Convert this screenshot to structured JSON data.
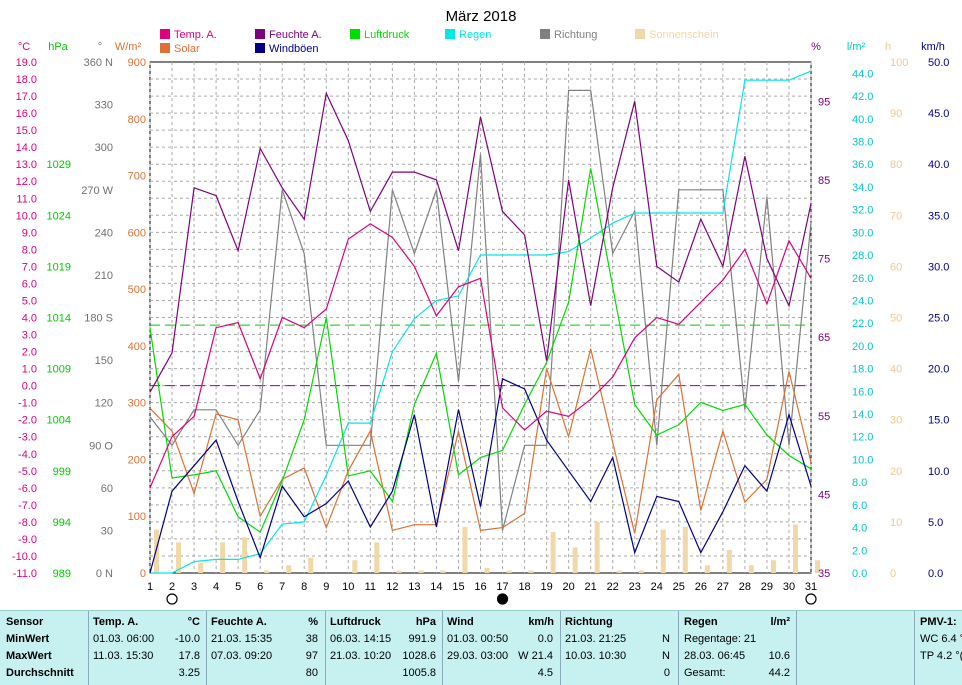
{
  "chart_data": {
    "type": "line",
    "title": "März 2018",
    "x": [
      1,
      2,
      3,
      4,
      5,
      6,
      7,
      8,
      9,
      10,
      11,
      12,
      13,
      14,
      15,
      16,
      17,
      18,
      19,
      20,
      21,
      22,
      23,
      24,
      25,
      26,
      27,
      28,
      29,
      30,
      31
    ],
    "moon_phase_days": [
      2,
      17,
      31
    ],
    "series": [
      {
        "name": "Temp. A.",
        "color": "#e0007e",
        "unit": "°C",
        "ylim": [
          -11,
          19
        ],
        "values": [
          -6.0,
          -3.0,
          -1.8,
          3.4,
          3.7,
          0.4,
          4.0,
          3.4,
          4.5,
          8.6,
          9.5,
          8.7,
          7.0,
          4.1,
          5.8,
          6.3,
          -1.3,
          -2.6,
          -1.5,
          -1.8,
          -0.8,
          0.5,
          2.8,
          4.0,
          3.6,
          4.9,
          6.2,
          8.0,
          4.8,
          8.5,
          6.3
        ]
      },
      {
        "name": "Feuchte A.",
        "color": "#800080",
        "unit": "%",
        "ylim": [
          35,
          100
        ],
        "values": [
          58,
          63,
          84,
          83,
          76,
          89,
          84,
          80,
          96,
          90,
          81,
          86,
          86,
          85,
          76,
          93,
          81,
          78,
          62,
          85,
          69,
          84,
          95,
          74,
          72,
          80,
          74,
          88,
          75,
          69,
          82
        ]
      },
      {
        "name": "Luftdruck",
        "color": "#00dd00",
        "unit": "hPa",
        "ylim": [
          989,
          1039
        ],
        "values": [
          1013,
          998.3,
          998.6,
          999,
          994.5,
          993,
          998,
          1004,
          1014,
          998.5,
          999,
          996,
          1005.5,
          1010.5,
          998.6,
          1000.3,
          1001,
          1005.5,
          1009.6,
          1015.5,
          1028.6,
          1017,
          1005.5,
          1002.5,
          1003.5,
          1005.7,
          1004.9,
          1005.5,
          1002.5,
          1000.5,
          999.2
        ]
      },
      {
        "name": "Regen",
        "color": "#00e8e8",
        "unit": "l/m²",
        "ylim": [
          0,
          45
        ],
        "cumulative": true,
        "values": [
          0,
          0,
          1.0,
          1.2,
          1.2,
          1.7,
          4.3,
          4.5,
          8.6,
          13.2,
          13.2,
          19.5,
          22.4,
          24.0,
          24.4,
          28.0,
          28.0,
          28.0,
          28.0,
          28.3,
          29.5,
          30.8,
          31.7,
          31.7,
          31.7,
          31.7,
          31.7,
          43.4,
          43.4,
          43.4,
          44.2
        ]
      },
      {
        "name": "Richtung",
        "color": "#808080",
        "unit": "°",
        "ylim": [
          0,
          360
        ],
        "values": [
          110,
          90,
          115,
          115,
          90,
          115,
          270,
          225,
          90,
          90,
          90,
          270,
          225,
          270,
          135,
          295,
          30,
          90,
          90,
          340,
          340,
          225,
          255,
          90,
          270,
          270,
          270,
          115,
          265,
          90,
          247
        ]
      },
      {
        "name": "Solar",
        "color": "#e07030",
        "unit": "W/m²",
        "ylim": [
          0,
          900
        ],
        "values": [
          290,
          250,
          140,
          280,
          270,
          100,
          165,
          185,
          80,
          180,
          250,
          75,
          85,
          85,
          250,
          75,
          80,
          105,
          360,
          240,
          395,
          230,
          70,
          305,
          350,
          110,
          250,
          125,
          165,
          355,
          195
        ]
      },
      {
        "name": "Windböen",
        "color": "#00008b",
        "unit": "km/h",
        "ylim": [
          0,
          50
        ],
        "values": [
          0,
          8.0,
          10.5,
          13.0,
          7.0,
          1.5,
          8.5,
          5.5,
          6.8,
          9.0,
          4.5,
          8.0,
          15.5,
          4.5,
          16.0,
          6.5,
          19.0,
          18.0,
          13.0,
          10.0,
          7.0,
          11.3,
          2.0,
          7.5,
          7.0,
          2.0,
          6.0,
          10.5,
          8.0,
          15.5,
          8.5
        ]
      },
      {
        "name": "Sonnenschein",
        "color": "#f0d8a8",
        "unit": "h",
        "ylim": [
          0,
          100
        ],
        "values": [
          8.5,
          6,
          2,
          6,
          7,
          0.5,
          1.5,
          3,
          0,
          2.5,
          6,
          0.5,
          0.5,
          0.5,
          9,
          1,
          0.5,
          0.5,
          8,
          5,
          10,
          0.5,
          0.5,
          8.5,
          9,
          1.5,
          4.5,
          1.5,
          2.5,
          9.5,
          2.5
        ]
      }
    ],
    "reference_lines": [
      {
        "axis": "hPa",
        "value": 1013.25,
        "color": "#00cc00",
        "style": "dashed"
      },
      {
        "axis": "°C",
        "value": 0,
        "color": "#9a00c8",
        "style": "dashed"
      }
    ],
    "axes": {
      "temp": {
        "label": "°C",
        "color": "#e0007e",
        "ticks": [
          "19.0",
          "18.0",
          "17.0",
          "16.0",
          "15.0",
          "14.0",
          "13.0",
          "12.0",
          "11.0",
          "10.0",
          "9.0",
          "8.0",
          "7.0",
          "6.0",
          "5.0",
          "4.0",
          "3.0",
          "2.0",
          "1.0",
          "0.0",
          "-1.0",
          "-2.0",
          "-3.0",
          "-4.0",
          "-5.0",
          "-6.0",
          "-7.0",
          "-8.0",
          "-9.0",
          "-10.0",
          "-11.0"
        ]
      },
      "pressure": {
        "label": "hPa",
        "color": "#00cc00",
        "ticks": [
          "1029",
          "1024",
          "1019",
          "1014",
          "1009",
          "1004",
          "999",
          "994",
          "989"
        ]
      },
      "direction": {
        "label": "°",
        "color": "#707070",
        "ticks": [
          "360 N",
          "330",
          "300",
          "270 W",
          "240",
          "210",
          "180 S",
          "150",
          "120",
          "90 O",
          "60",
          "30",
          "0 N"
        ]
      },
      "solar": {
        "label": "W/m²",
        "color": "#e07030",
        "ticks": [
          "900",
          "800",
          "700",
          "600",
          "500",
          "400",
          "300",
          "200",
          "100",
          "0"
        ]
      },
      "humidity": {
        "label": "%",
        "color": "#800080",
        "ticks": [
          "95",
          "85",
          "75",
          "65",
          "55",
          "45",
          "35"
        ]
      },
      "rain": {
        "label": "l/m²",
        "color": "#00c8c8",
        "ticks": [
          "44.0",
          "42.0",
          "40.0",
          "38.0",
          "36.0",
          "34.0",
          "32.0",
          "30.0",
          "28.0",
          "26.0",
          "24.0",
          "22.0",
          "20.0",
          "18.0",
          "16.0",
          "14.0",
          "12.0",
          "10.0",
          "8.0",
          "6.0",
          "4.0",
          "2.0",
          "0.0"
        ]
      },
      "sun": {
        "label": "h",
        "color": "#f0c890",
        "ticks": [
          "100",
          "90",
          "80",
          "70",
          "60",
          "50",
          "40",
          "30",
          "20",
          "10",
          "0"
        ]
      },
      "wind": {
        "label": "km/h",
        "color": "#00008b",
        "ticks": [
          "50.0",
          "45.0",
          "40.0",
          "35.0",
          "30.0",
          "25.0",
          "20.0",
          "15.0",
          "10.0",
          "5.0",
          "0.0"
        ]
      }
    }
  },
  "summary_table": {
    "row_labels": [
      "Sensor",
      "MinWert",
      "MaxWert",
      "Durchschnitt"
    ],
    "temp": {
      "header": "Temp. A.",
      "unit": "°C",
      "min_time": "01.03.  06:00",
      "min": "-10.0",
      "max_time": "11.03.  15:30",
      "max": "17.8",
      "avg": "3.25"
    },
    "humidity": {
      "header": "Feuchte A.",
      "unit": "%",
      "min_time": "21.03.  15:35",
      "min": "38",
      "max_time": "07.03.  09:20",
      "max": "97",
      "avg": "80"
    },
    "pressure": {
      "header": "Luftdruck",
      "unit": "hPa",
      "min_time": "06.03.  14:15",
      "min": "991.9",
      "max_time": "21.03.  10:20",
      "max": "1028.6",
      "avg": "1005.8"
    },
    "wind": {
      "header": "Wind",
      "unit": "km/h",
      "min_time": "01.03.  00:50",
      "min": "0.0",
      "max_time": "29.03.  03:00",
      "max": "W 21.4",
      "avg": "4.5"
    },
    "direction": {
      "header": "Richtung",
      "min_time": "21.03.  21:25",
      "min": "N",
      "max_time": "10.03.  10:30",
      "max": "N",
      "avg": "0"
    },
    "rain": {
      "header": "Regen",
      "unit": "l/m²",
      "row1": "Regentage: 21",
      "row2_time": "28.03.  06:45",
      "row2_val": "10.6",
      "row3_label": "Gesamt:",
      "row3_val": "44.2"
    },
    "pmv": {
      "header": "PMV-1:",
      "wc": "WC 6.4 °",
      "tp": "TP 4.2 °("
    }
  }
}
